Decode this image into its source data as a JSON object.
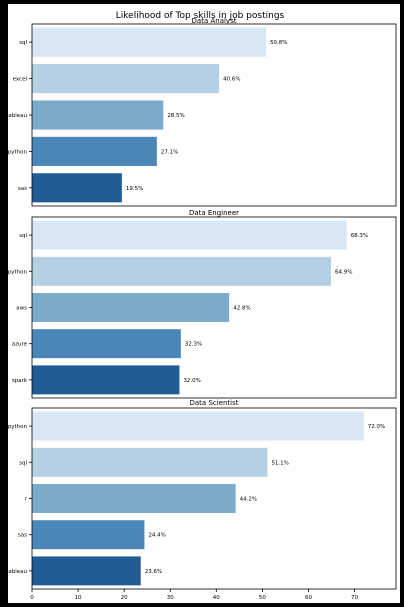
{
  "suptitle": "Likelihood of Top skills in job postings",
  "colors": [
    "#d9e6f3",
    "#b5d0e3",
    "#7baacb",
    "#4a87b8",
    "#225c96"
  ],
  "chart_data": [
    {
      "type": "bar",
      "orientation": "horizontal",
      "title": "Data Analyst",
      "categories": [
        "sql",
        "excel",
        "tableau",
        "python",
        "sas"
      ],
      "values": [
        50.8,
        40.6,
        28.5,
        27.1,
        19.5
      ],
      "labels": [
        "50.8%",
        "40.6%",
        "28.5%",
        "27.1%",
        "19.5%"
      ],
      "xlim": [
        0,
        79
      ]
    },
    {
      "type": "bar",
      "orientation": "horizontal",
      "title": "Data Engineer",
      "categories": [
        "sql",
        "python",
        "aws",
        "azure",
        "spark"
      ],
      "values": [
        68.3,
        64.9,
        42.8,
        32.3,
        32.0
      ],
      "labels": [
        "68.3%",
        "64.9%",
        "42.8%",
        "32.3%",
        "32.0%"
      ],
      "xlim": [
        0,
        79
      ]
    },
    {
      "type": "bar",
      "orientation": "horizontal",
      "title": "Data Scientist",
      "categories": [
        "python",
        "sql",
        "r",
        "sas",
        "tableau"
      ],
      "values": [
        72.0,
        51.1,
        44.2,
        24.4,
        23.6
      ],
      "labels": [
        "72.0%",
        "51.1%",
        "44.2%",
        "24.4%",
        "23.6%"
      ],
      "xlim": [
        0,
        79
      ],
      "xticks": [
        "0",
        "10",
        "20",
        "30",
        "40",
        "50",
        "60",
        "70"
      ]
    }
  ]
}
